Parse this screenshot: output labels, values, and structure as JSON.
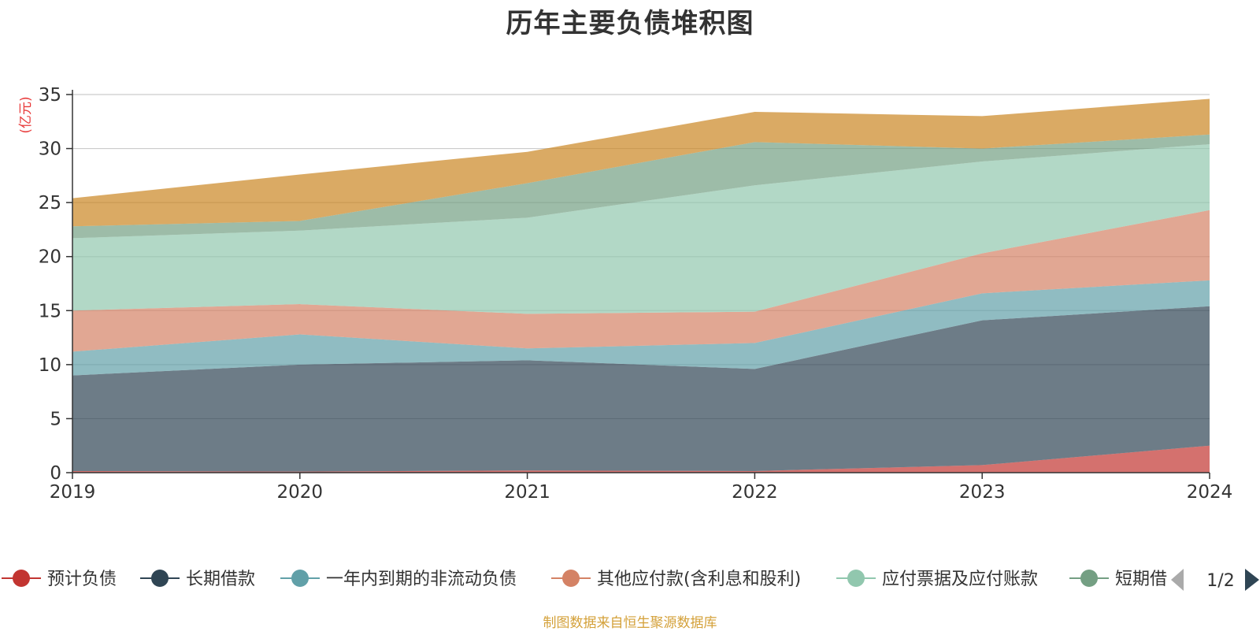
{
  "page": {
    "title": "历年主要负债堆积图",
    "source_note": "制图数据来自恒生聚源数据库"
  },
  "legend": {
    "page_indicator": "1/2",
    "visible_labels": [
      "预计负债",
      "长期借款",
      "一年内到期的非流动负债",
      "其他应付款(含利息和股利)",
      "应付票据及应付账款",
      "短期借"
    ]
  },
  "chart_data": {
    "type": "area",
    "stacked": true,
    "title": "历年主要负债堆积图",
    "unit_label": "(亿元)",
    "x": [
      "2019",
      "2020",
      "2021",
      "2022",
      "2023",
      "2024"
    ],
    "ylim": [
      0,
      35
    ],
    "yticks": [
      0,
      5,
      10,
      15,
      20,
      25,
      30,
      35
    ],
    "grid": true,
    "legend_position": "bottom",
    "series": [
      {
        "name": "预计负债",
        "color": "#c23531",
        "values": [
          0.15,
          0.1,
          0.2,
          0.15,
          0.7,
          2.5
        ]
      },
      {
        "name": "长期借款",
        "color": "#2f4554",
        "values": [
          8.85,
          9.9,
          10.2,
          9.45,
          13.4,
          12.9
        ]
      },
      {
        "name": "一年内到期的非流动负债",
        "color": "#61a0a8",
        "values": [
          2.2,
          2.8,
          1.1,
          2.4,
          2.5,
          2.4
        ]
      },
      {
        "name": "其他应付款(含利息和股利)",
        "color": "#d48265",
        "values": [
          3.8,
          2.8,
          3.2,
          2.9,
          3.7,
          6.5
        ]
      },
      {
        "name": "应付票据及应付账款",
        "color": "#91c7ae",
        "values": [
          6.7,
          6.8,
          8.9,
          11.7,
          8.5,
          6.1
        ]
      },
      {
        "name": "短期借款",
        "color": "#749f83",
        "values": [
          1.1,
          0.9,
          3.2,
          4.0,
          1.2,
          0.9
        ]
      },
      {
        "color": "#ca8622",
        "values": [
          2.6,
          4.3,
          2.9,
          2.8,
          3.0,
          3.3
        ]
      }
    ]
  }
}
